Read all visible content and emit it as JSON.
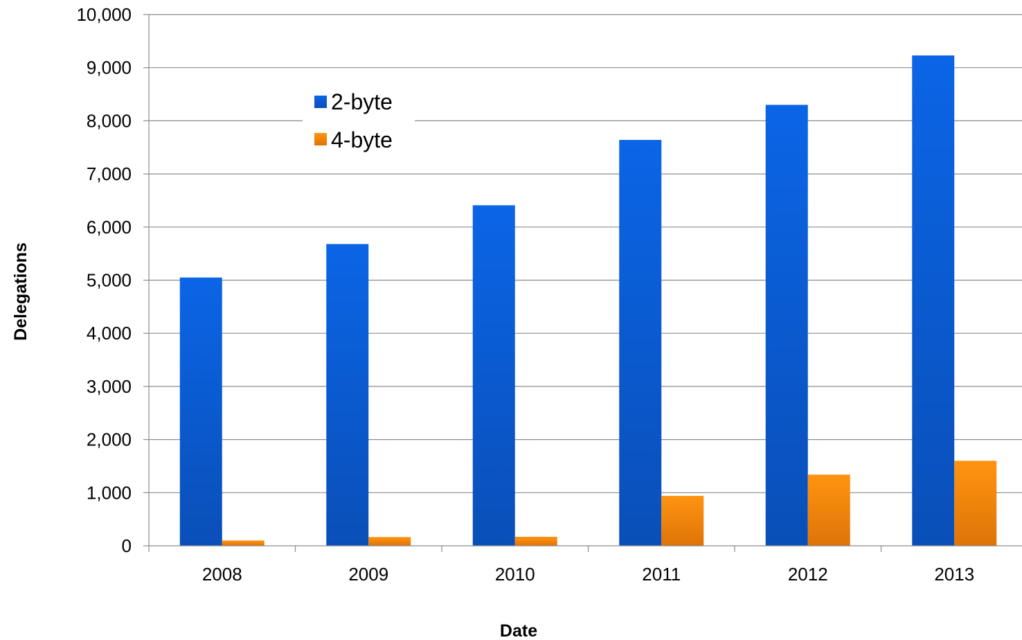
{
  "chart_data": {
    "type": "bar",
    "title": "",
    "xlabel": "Date",
    "ylabel": "Delegations",
    "categories": [
      "2008",
      "2009",
      "2010",
      "2011",
      "2012",
      "2013"
    ],
    "series": [
      {
        "name": "2-byte",
        "values": [
          5050,
          5680,
          6410,
          7640,
          8300,
          9230
        ],
        "color": "#0a5fd9"
      },
      {
        "name": "4-byte",
        "values": [
          100,
          165,
          170,
          940,
          1340,
          1600
        ],
        "color": "#f28a0a"
      }
    ],
    "ylim": [
      0,
      10000
    ],
    "yticks": [
      0,
      1000,
      2000,
      3000,
      4000,
      5000,
      6000,
      7000,
      8000,
      9000,
      10000
    ],
    "ytick_labels": [
      "0",
      "1,000",
      "2,000",
      "3,000",
      "4,000",
      "5,000",
      "6,000",
      "7,000",
      "8,000",
      "9,000",
      "10,000"
    ],
    "grid": true,
    "legend_position": "top-left inside plot"
  }
}
